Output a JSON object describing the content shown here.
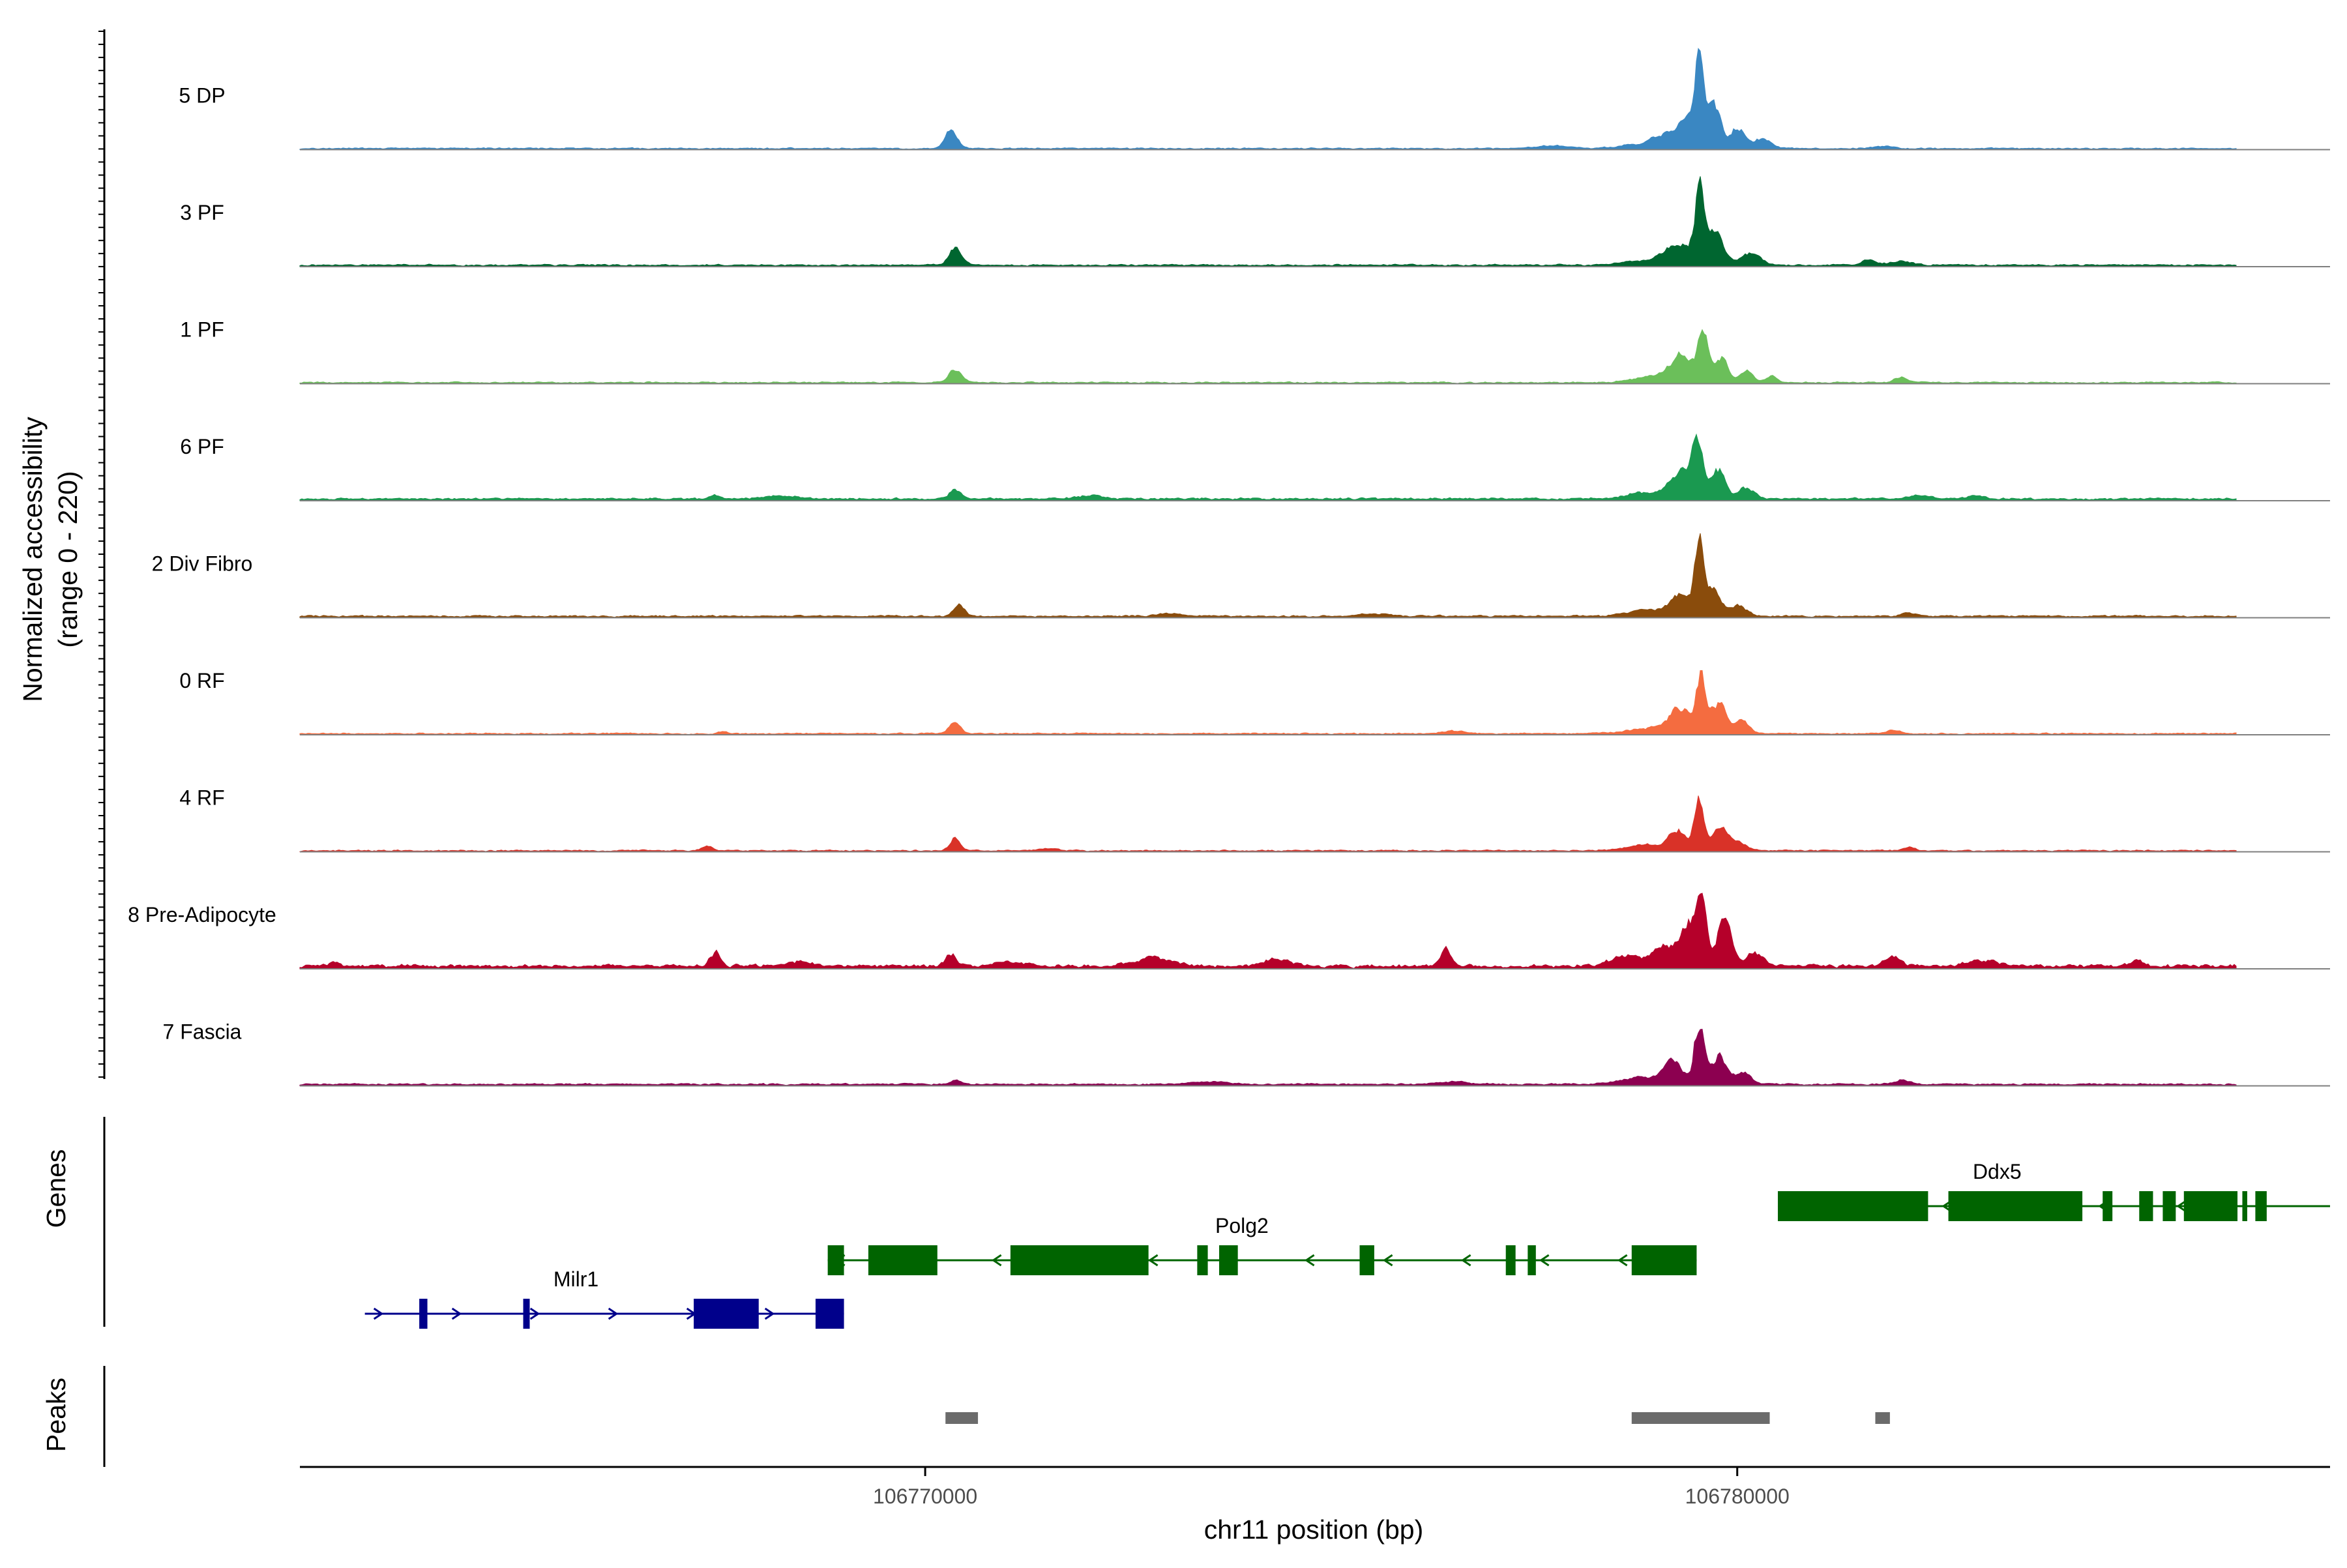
{
  "chart_data": {
    "type": "area",
    "title": "",
    "xlabel": "chr11 position (bp)",
    "ylabel": "Normalized accessibility",
    "ylabel_sub": "(range 0 - 220)",
    "ylim": [
      0,
      220
    ],
    "xlim": [
      106762300,
      106787300
    ],
    "xticks": [
      {
        "value": 106770000,
        "label": "106770000"
      },
      {
        "value": 106780000,
        "label": "106780000"
      }
    ],
    "track_labels": {
      "genes": "Genes",
      "peaks": "Peaks"
    },
    "series": [
      {
        "name": "5 DP",
        "color": "#3a87c2",
        "baseline": 3,
        "noise": 2.2,
        "bumps": [
          [
            106770300,
            42,
            70
          ],
          [
            106777700,
            6,
            200
          ],
          [
            106778800,
            9,
            260
          ],
          [
            106779150,
            28,
            170
          ],
          [
            106779420,
            62,
            120
          ],
          [
            106779520,
            195,
            45
          ],
          [
            106779700,
            90,
            80
          ],
          [
            106780000,
            50,
            80
          ],
          [
            106780300,
            24,
            90
          ],
          [
            106781800,
            6,
            120
          ]
        ]
      },
      {
        "name": "3 PF",
        "color": "#006630",
        "baseline": 4,
        "noise": 2.5,
        "bumps": [
          [
            106770350,
            40,
            70
          ],
          [
            106778900,
            11,
            300
          ],
          [
            106779250,
            42,
            140
          ],
          [
            106779520,
            170,
            55
          ],
          [
            106779720,
            70,
            90
          ],
          [
            106780150,
            25,
            120
          ],
          [
            106781600,
            13,
            70
          ],
          [
            106782000,
            7,
            150
          ]
        ]
      },
      {
        "name": "1 PF",
        "color": "#6bbf5a",
        "baseline": 3,
        "noise": 2.4,
        "bumps": [
          [
            106770350,
            28,
            75
          ],
          [
            106779000,
            14,
            260
          ],
          [
            106779300,
            55,
            130
          ],
          [
            106779560,
            130,
            55
          ],
          [
            106779780,
            60,
            80
          ],
          [
            106780100,
            30,
            70
          ],
          [
            106780400,
            16,
            60
          ],
          [
            106782000,
            14,
            70
          ]
        ]
      },
      {
        "name": "6 PF",
        "color": "#1a9950",
        "baseline": 5,
        "noise": 3.0,
        "bumps": [
          [
            106767400,
            10,
            50
          ],
          [
            106768200,
            6,
            200
          ],
          [
            106770350,
            22,
            60
          ],
          [
            106772000,
            7,
            150
          ],
          [
            106778900,
            14,
            280
          ],
          [
            106779300,
            55,
            130
          ],
          [
            106779500,
            120,
            60
          ],
          [
            106779750,
            65,
            80
          ],
          [
            106780100,
            25,
            90
          ],
          [
            106782200,
            8,
            120
          ],
          [
            106782900,
            7,
            100
          ]
        ]
      },
      {
        "name": "2 Div Fibro",
        "color": "#8a4c0c",
        "baseline": 4,
        "noise": 2.8,
        "bumps": [
          [
            106770400,
            25,
            60
          ],
          [
            106773000,
            5,
            180
          ],
          [
            106775500,
            5,
            160
          ],
          [
            106778900,
            14,
            240
          ],
          [
            106779300,
            45,
            120
          ],
          [
            106779520,
            165,
            50
          ],
          [
            106779700,
            60,
            80
          ],
          [
            106780000,
            22,
            90
          ],
          [
            106782100,
            8,
            80
          ]
        ]
      },
      {
        "name": "0 RF",
        "color": "#f46c40",
        "baseline": 3,
        "noise": 2.6,
        "bumps": [
          [
            106767500,
            6,
            50
          ],
          [
            106770350,
            28,
            60
          ],
          [
            106776500,
            6,
            150
          ],
          [
            106778900,
            12,
            260
          ],
          [
            106779280,
            55,
            120
          ],
          [
            106779540,
            125,
            55
          ],
          [
            106779760,
            70,
            80
          ],
          [
            106780050,
            30,
            80
          ],
          [
            106781900,
            7,
            90
          ]
        ]
      },
      {
        "name": "4 RF",
        "color": "#d93228",
        "baseline": 3,
        "noise": 2.8,
        "bumps": [
          [
            106767300,
            12,
            55
          ],
          [
            106770350,
            30,
            55
          ],
          [
            106771500,
            6,
            120
          ],
          [
            106778850,
            12,
            240
          ],
          [
            106779250,
            45,
            100
          ],
          [
            106779520,
            115,
            55
          ],
          [
            106779780,
            52,
            80
          ],
          [
            106780000,
            22,
            90
          ],
          [
            106782100,
            8,
            70
          ]
        ]
      },
      {
        "name": "8 Pre-Adipocyte",
        "color": "#b5002a",
        "baseline": 7,
        "noise": 7,
        "bumps": [
          [
            106762700,
            8,
            60
          ],
          [
            106767400,
            35,
            50
          ],
          [
            106768400,
            10,
            150
          ],
          [
            106770300,
            28,
            60
          ],
          [
            106771000,
            9,
            200
          ],
          [
            106772800,
            17,
            220
          ],
          [
            106774300,
            18,
            150
          ],
          [
            106776400,
            38,
            60
          ],
          [
            106778600,
            25,
            160
          ],
          [
            106779100,
            45,
            150
          ],
          [
            106779380,
            90,
            80
          ],
          [
            106779540,
            160,
            55
          ],
          [
            106779820,
            95,
            90
          ],
          [
            106780200,
            30,
            90
          ],
          [
            106781900,
            25,
            80
          ],
          [
            106783000,
            16,
            150
          ],
          [
            106784900,
            15,
            60
          ]
        ]
      },
      {
        "name": "7 Fascia",
        "color": "#8c0050",
        "baseline": 4,
        "noise": 2.6,
        "bumps": [
          [
            106770350,
            10,
            55
          ],
          [
            106773500,
            6,
            200
          ],
          [
            106776500,
            6,
            160
          ],
          [
            106778800,
            16,
            250
          ],
          [
            106779200,
            48,
            110
          ],
          [
            106779520,
            150,
            55
          ],
          [
            106779760,
            65,
            85
          ],
          [
            106780050,
            28,
            90
          ],
          [
            106782000,
            9,
            100
          ]
        ]
      }
    ],
    "genes": [
      {
        "name": "Milr1",
        "strand": "+",
        "color": "#00008b",
        "start": 106763100,
        "end": 106769000,
        "row": 3,
        "label_at": 106765700,
        "exons": [
          [
            106763770,
            106763870
          ],
          [
            106765050,
            106765130
          ],
          [
            106767150,
            106767950
          ],
          [
            106768650,
            106769000
          ]
        ]
      },
      {
        "name": "Polg2",
        "strand": "-",
        "color": "#006400",
        "start": 106768800,
        "end": 106779500,
        "row": 2,
        "label_at": 106773900,
        "exons": [
          [
            106768800,
            106769000
          ],
          [
            106769300,
            106770150
          ],
          [
            106771050,
            106772750
          ],
          [
            106773350,
            106773480
          ],
          [
            106773620,
            106773850
          ],
          [
            106775350,
            106775530
          ],
          [
            106777150,
            106777270
          ],
          [
            106777420,
            106777520
          ],
          [
            106778700,
            106779500
          ]
        ]
      },
      {
        "name": "Ddx5",
        "strand": "-",
        "color": "#006400",
        "start": 106780500,
        "end": 106787300,
        "row": 1,
        "label_at": 106783200,
        "exons": [
          [
            106780500,
            106782350
          ],
          [
            106782600,
            106784250
          ],
          [
            106784500,
            106784620
          ],
          [
            106784950,
            106785120
          ],
          [
            106785240,
            106785400
          ],
          [
            106785500,
            106786160
          ],
          [
            106786220,
            106786280
          ],
          [
            106786380,
            106786520
          ]
        ]
      }
    ],
    "peaks": [
      [
        106770250,
        106770650
      ],
      [
        106778700,
        106780400
      ],
      [
        106781700,
        106781880
      ]
    ]
  }
}
